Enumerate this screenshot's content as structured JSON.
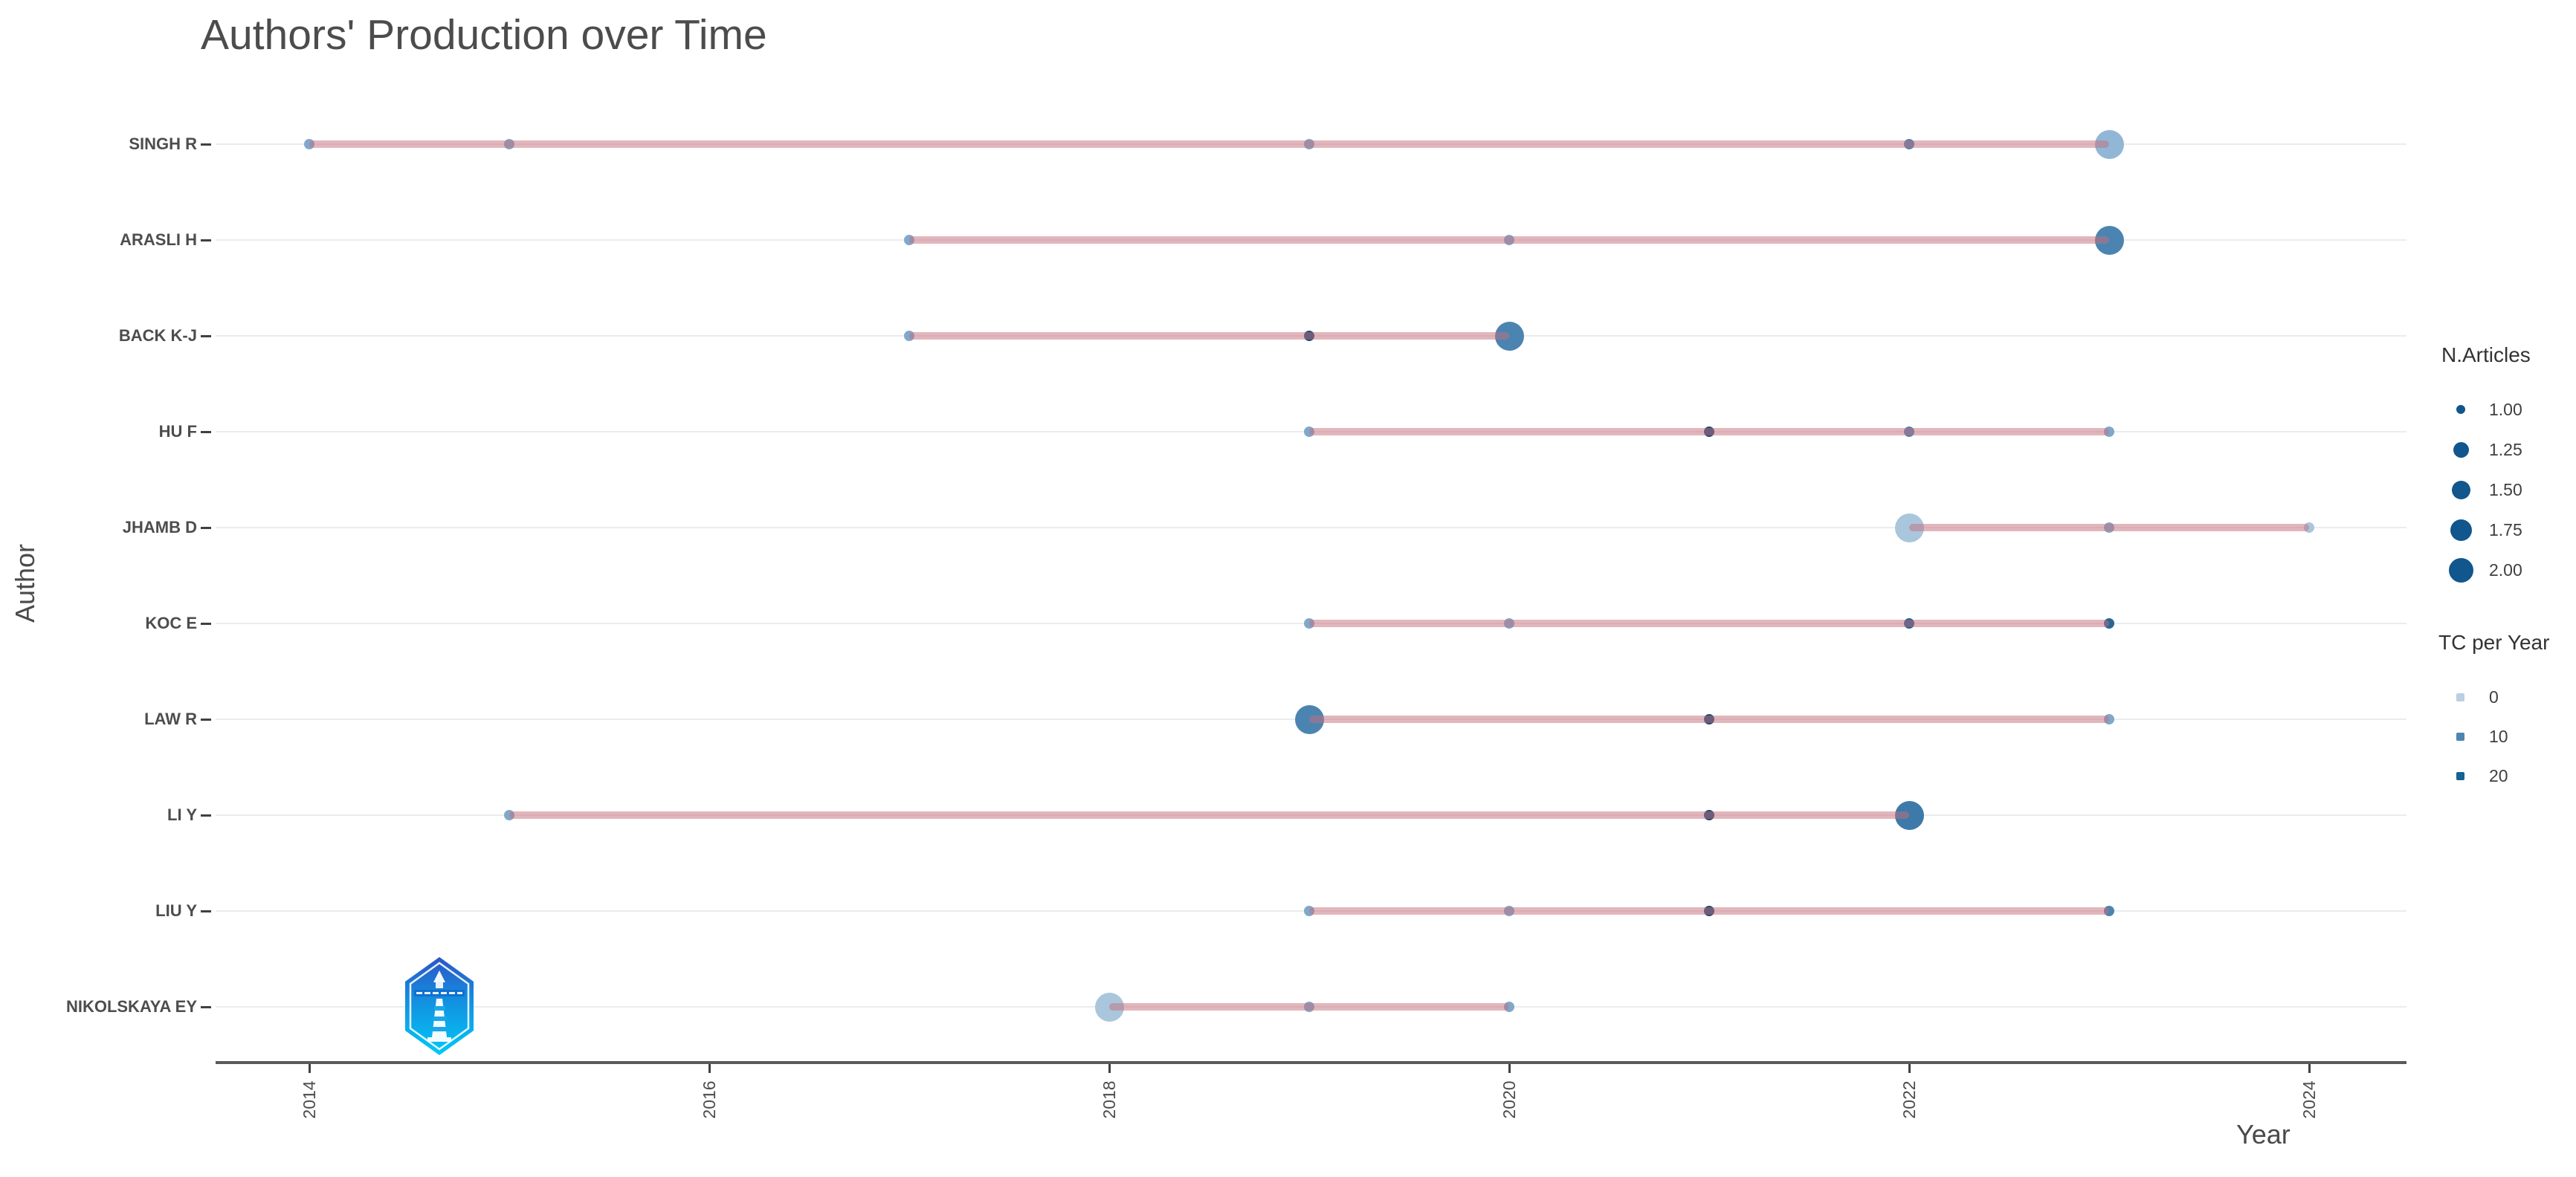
{
  "title": "Authors' Production over Time",
  "x_axis": {
    "label": "Year"
  },
  "y_axis": {
    "label": "Author"
  },
  "legend": {
    "size": {
      "title": "N.Articles",
      "items": [
        {
          "label": "1.00",
          "d": 12
        },
        {
          "label": "1.25",
          "d": 21
        },
        {
          "label": "1.50",
          "d": 25
        },
        {
          "label": "1.75",
          "d": 29
        },
        {
          "label": "2.00",
          "d": 33
        }
      ],
      "marker_color": "#11568c"
    },
    "color": {
      "title": "TC per Year",
      "items": [
        {
          "label": "0",
          "color": "#b8d0e2"
        },
        {
          "label": "10",
          "color": "#4d86b3"
        },
        {
          "label": "20",
          "color": "#176294"
        }
      ]
    }
  },
  "watermark": {
    "name": "lighthouse-hexagon-badge-logo"
  },
  "chart_data": {
    "type": "scatter",
    "title": "Authors' Production over Time",
    "xlabel": "Year",
    "ylabel": "Author",
    "x_ticks": [
      2014,
      2016,
      2018,
      2020,
      2022,
      2024
    ],
    "x_range": [
      2013.5,
      2024.5
    ],
    "grid": "horizontal-only",
    "line_color": "rgba(198,110,123,0.5)",
    "palette": {
      "light": "#a9c6dd",
      "softlight": "#92b7d6",
      "mid": "#7fa8ca",
      "steel": "#4c84b1",
      "meddark": "#3d7aa9",
      "deep": "#2a6695",
      "deepblue": "#1d5f93",
      "dark": "#1b4a72"
    },
    "series": [
      {
        "name": "SINGH R",
        "points": [
          {
            "year": 2014,
            "articles": 1,
            "shade": "mid"
          },
          {
            "year": 2015,
            "articles": 1,
            "shade": "mid"
          },
          {
            "year": 2019,
            "articles": 1,
            "shade": "mid"
          },
          {
            "year": 2022,
            "articles": 1,
            "shade": "steel"
          },
          {
            "year": 2023,
            "articles": 2,
            "shade": "softlight"
          }
        ]
      },
      {
        "name": "ARASLI H",
        "points": [
          {
            "year": 2017,
            "articles": 1,
            "shade": "mid"
          },
          {
            "year": 2020,
            "articles": 1,
            "shade": "mid"
          },
          {
            "year": 2023,
            "articles": 2,
            "shade": "steel"
          }
        ]
      },
      {
        "name": "BACK K-J",
        "points": [
          {
            "year": 2017,
            "articles": 1,
            "shade": "mid"
          },
          {
            "year": 2019,
            "articles": 1,
            "shade": "dark"
          },
          {
            "year": 2020,
            "articles": 2,
            "shade": "steel"
          }
        ]
      },
      {
        "name": "HU F",
        "points": [
          {
            "year": 2019,
            "articles": 1,
            "shade": "mid"
          },
          {
            "year": 2021,
            "articles": 1,
            "shade": "dark"
          },
          {
            "year": 2022,
            "articles": 1,
            "shade": "steel"
          },
          {
            "year": 2023,
            "articles": 1,
            "shade": "mid"
          }
        ]
      },
      {
        "name": "JHAMB D",
        "points": [
          {
            "year": 2022,
            "articles": 2,
            "shade": "light"
          },
          {
            "year": 2023,
            "articles": 1,
            "shade": "mid"
          },
          {
            "year": 2024,
            "articles": 1,
            "shade": "light"
          }
        ]
      },
      {
        "name": "KOC E",
        "points": [
          {
            "year": 2019,
            "articles": 1,
            "shade": "mid"
          },
          {
            "year": 2020,
            "articles": 1,
            "shade": "mid"
          },
          {
            "year": 2022,
            "articles": 1,
            "shade": "deepblue"
          },
          {
            "year": 2023,
            "articles": 1,
            "shade": "deep"
          }
        ]
      },
      {
        "name": "LAW R",
        "points": [
          {
            "year": 2019,
            "articles": 2,
            "shade": "steel"
          },
          {
            "year": 2021,
            "articles": 1,
            "shade": "dark"
          },
          {
            "year": 2023,
            "articles": 1,
            "shade": "mid"
          }
        ]
      },
      {
        "name": "LI Y",
        "points": [
          {
            "year": 2015,
            "articles": 1,
            "shade": "mid"
          },
          {
            "year": 2021,
            "articles": 1,
            "shade": "dark"
          },
          {
            "year": 2022,
            "articles": 2,
            "shade": "meddark"
          }
        ]
      },
      {
        "name": "LIU Y",
        "points": [
          {
            "year": 2019,
            "articles": 1,
            "shade": "mid"
          },
          {
            "year": 2020,
            "articles": 1,
            "shade": "mid"
          },
          {
            "year": 2021,
            "articles": 1,
            "shade": "dark"
          },
          {
            "year": 2023,
            "articles": 1,
            "shade": "steel"
          }
        ]
      },
      {
        "name": "NIKOLSKAYA EY",
        "points": [
          {
            "year": 2018,
            "articles": 2,
            "shade": "light"
          },
          {
            "year": 2019,
            "articles": 1,
            "shade": "mid"
          },
          {
            "year": 2020,
            "articles": 1,
            "shade": "mid"
          }
        ]
      }
    ]
  }
}
